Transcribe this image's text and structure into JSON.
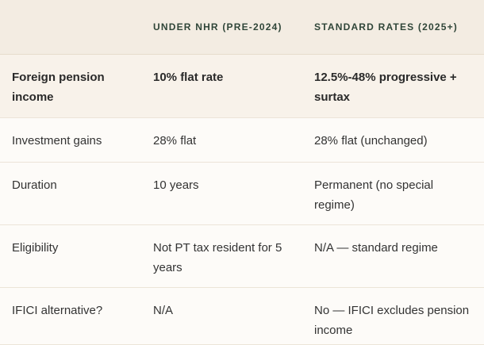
{
  "table": {
    "headers": [
      "UNDER NHR (PRE-2024)",
      "STANDARD RATES (2025+)"
    ],
    "rows": [
      [
        "Foreign pension income",
        "10% flat rate",
        "12.5%-48% progressive + surtax"
      ],
      [
        "Investment gains",
        "28% flat",
        "28% flat (unchanged)"
      ],
      [
        "Duration",
        "10 years",
        "Permanent (no special regime)"
      ],
      [
        "Eligibility",
        "Not PT tax resident for 5 years",
        "N/A — standard regime"
      ],
      [
        "IFICI alternative?",
        "N/A",
        "No — IFICI excludes pension income"
      ]
    ]
  }
}
